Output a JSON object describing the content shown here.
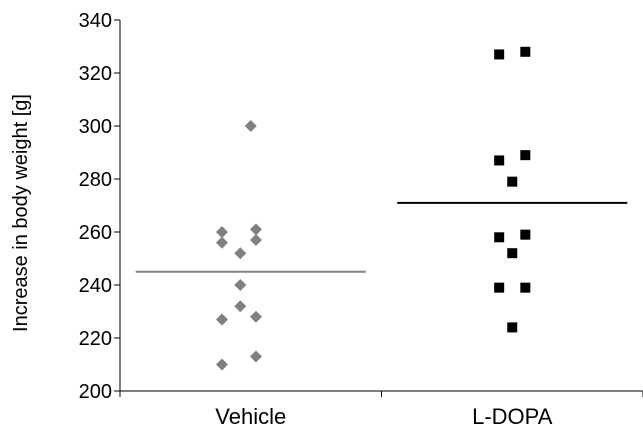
{
  "chart_data": {
    "type": "scatter",
    "ylabel": "Increase in body weight [g]",
    "xlabel": "",
    "categories": [
      "Vehicle",
      "L-DOPA"
    ],
    "ylim": [
      200,
      340
    ],
    "yticks": [
      200,
      220,
      240,
      260,
      280,
      300,
      320,
      340
    ],
    "grid": false,
    "legend": "none",
    "series": [
      {
        "category": "Vehicle",
        "marker": "diamond",
        "color": "#808080",
        "points": [
          {
            "offset": 0.0,
            "y": 300
          },
          {
            "offset": -0.11,
            "y": 260
          },
          {
            "offset": 0.02,
            "y": 261
          },
          {
            "offset": -0.11,
            "y": 256
          },
          {
            "offset": 0.02,
            "y": 257
          },
          {
            "offset": -0.04,
            "y": 252
          },
          {
            "offset": -0.04,
            "y": 240
          },
          {
            "offset": -0.04,
            "y": 232
          },
          {
            "offset": -0.11,
            "y": 227
          },
          {
            "offset": 0.02,
            "y": 228
          },
          {
            "offset": 0.02,
            "y": 213
          },
          {
            "offset": -0.11,
            "y": 210
          }
        ],
        "mean": 245,
        "mean_color": "#808080"
      },
      {
        "category": "L-DOPA",
        "marker": "square",
        "color": "#000000",
        "points": [
          {
            "offset": -0.05,
            "y": 327
          },
          {
            "offset": 0.05,
            "y": 328
          },
          {
            "offset": -0.05,
            "y": 287
          },
          {
            "offset": 0.05,
            "y": 289
          },
          {
            "offset": 0.0,
            "y": 279
          },
          {
            "offset": -0.05,
            "y": 258
          },
          {
            "offset": 0.05,
            "y": 259
          },
          {
            "offset": 0.0,
            "y": 252
          },
          {
            "offset": -0.05,
            "y": 239
          },
          {
            "offset": 0.05,
            "y": 239
          },
          {
            "offset": 0.0,
            "y": 224
          }
        ],
        "mean": 271,
        "mean_color": "#000000"
      }
    ]
  }
}
